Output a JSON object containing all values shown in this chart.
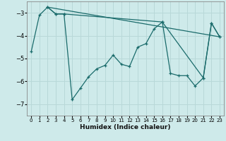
{
  "xlabel": "Humidex (Indice chaleur)",
  "xlim": [
    -0.5,
    23.5
  ],
  "ylim": [
    -7.5,
    -2.5
  ],
  "yticks": [
    -7,
    -6,
    -5,
    -4,
    -3
  ],
  "xticks": [
    0,
    1,
    2,
    3,
    4,
    5,
    6,
    7,
    8,
    9,
    10,
    11,
    12,
    13,
    14,
    15,
    16,
    17,
    18,
    19,
    20,
    21,
    22,
    23
  ],
  "bg_color": "#ceeaea",
  "line_color": "#1a6b6b",
  "grid_color": "#b8d8d8",
  "line1_x": [
    0,
    1,
    2,
    3,
    4,
    5,
    6,
    7,
    8,
    9,
    10,
    11,
    12,
    13,
    14,
    15,
    16,
    17,
    18,
    19,
    20,
    21,
    22,
    23
  ],
  "line1_y": [
    -4.7,
    -3.1,
    -2.75,
    -3.05,
    -3.05,
    -6.8,
    -6.3,
    -5.8,
    -5.45,
    -5.3,
    -4.85,
    -5.25,
    -5.35,
    -4.5,
    -4.35,
    -3.7,
    -3.4,
    -5.65,
    -5.75,
    -5.75,
    -6.2,
    -5.85,
    -3.45,
    -4.05
  ],
  "line2_x": [
    2,
    3,
    4,
    16,
    21,
    22,
    23
  ],
  "line2_y": [
    -2.75,
    -3.05,
    -3.05,
    -3.4,
    -5.85,
    -3.45,
    -4.05
  ],
  "line3_x": [
    2,
    23
  ],
  "line3_y": [
    -2.75,
    -4.05
  ]
}
